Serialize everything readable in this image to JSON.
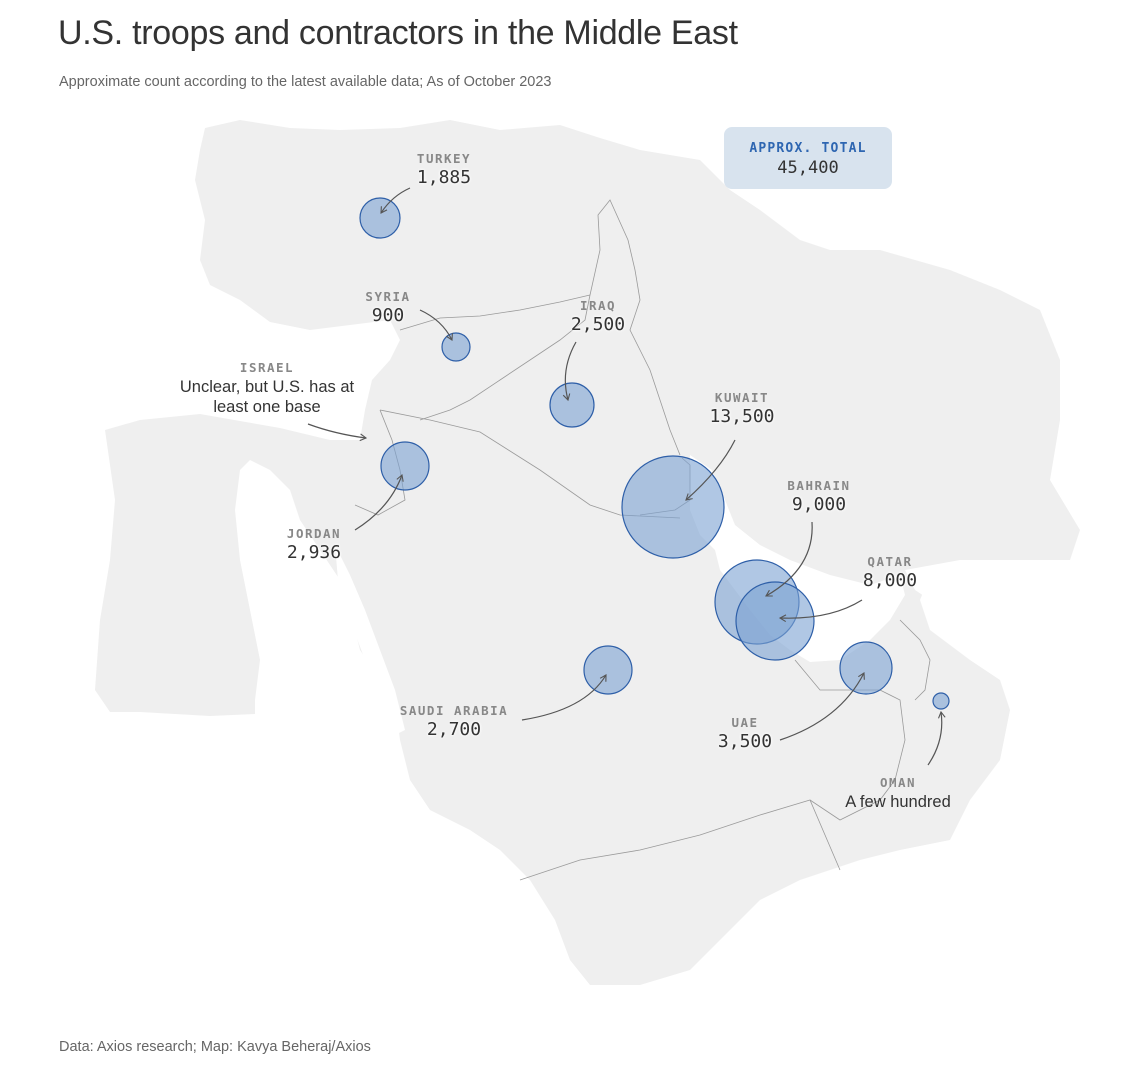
{
  "title": "U.S. troops and contractors in the Middle East",
  "subtitle": "Approximate count according to the latest available data; As of October 2023",
  "source": "Data: Axios research; Map: Kavya Beheraj/Axios",
  "total": {
    "label": "APPROX. TOTAL",
    "value": "45,400"
  },
  "colors": {
    "land": "#efefef",
    "border": "#9a9a9a",
    "bubble_fill": "#7ba2d2",
    "bubble_stroke": "#2e5fa8",
    "accent": "#2e66b1"
  },
  "countries": [
    {
      "id": "turkey",
      "name": "TURKEY",
      "value": "1,885",
      "count": 1885
    },
    {
      "id": "syria",
      "name": "SYRIA",
      "value": "900",
      "count": 900
    },
    {
      "id": "iraq",
      "name": "IRAQ",
      "value": "2,500",
      "count": 2500
    },
    {
      "id": "israel",
      "name": "ISRAEL",
      "note": "Unclear, but U.S. has at least one base"
    },
    {
      "id": "kuwait",
      "name": "KUWAIT",
      "value": "13,500",
      "count": 13500
    },
    {
      "id": "jordan",
      "name": "JORDAN",
      "value": "2,936",
      "count": 2936
    },
    {
      "id": "bahrain",
      "name": "BAHRAIN",
      "value": "9,000",
      "count": 9000
    },
    {
      "id": "qatar",
      "name": "QATAR",
      "value": "8,000",
      "count": 8000
    },
    {
      "id": "saudi",
      "name": "SAUDI ARABIA",
      "value": "2,700",
      "count": 2700
    },
    {
      "id": "uae",
      "name": "UAE",
      "value": "3,500",
      "count": 3500
    },
    {
      "id": "oman",
      "name": "OMAN",
      "note": "A few hundred"
    }
  ]
}
